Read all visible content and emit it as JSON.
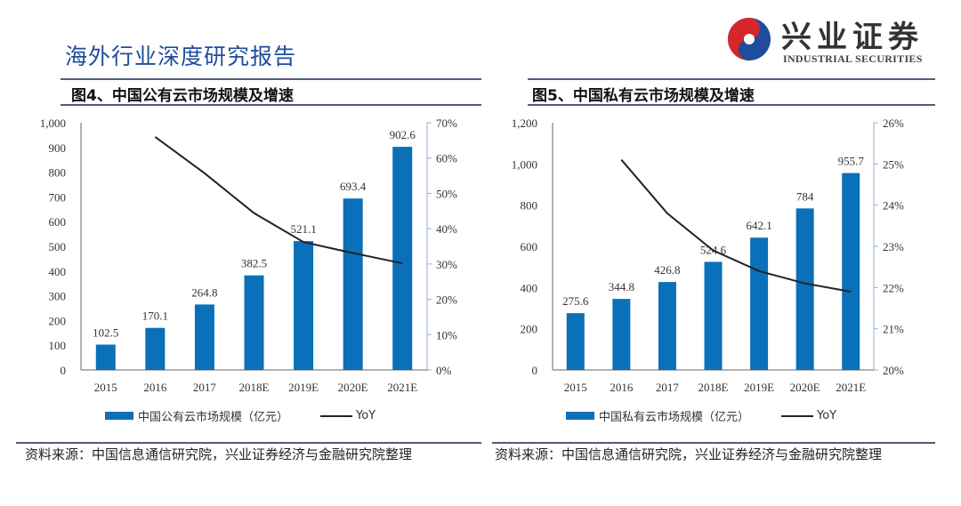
{
  "header": {
    "report_title": "海外行业深度研究报告",
    "logo_cn": "兴业证券",
    "logo_en": "INDUSTRIAL SECURITIES"
  },
  "colors": {
    "bar": "#0a70b9",
    "line": "#222222",
    "title": "#1f4c9c",
    "logo_red": "#d7262b",
    "logo_blue": "#1f4c9c"
  },
  "figures": [
    {
      "title": "图4、中国公有云市场规模及增速",
      "legend_bar": "中国公有云市场规模（亿元）",
      "legend_line": "YoY",
      "source": "资料来源：中国信息通信研究院，兴业证券经济与金融研究院整理"
    },
    {
      "title": "图5、中国私有云市场规模及增速",
      "legend_bar": "中国私有云市场规模（亿元）",
      "legend_line": "YoY",
      "source": "资料来源：中国信息通信研究院，兴业证券经济与金融研究院整理"
    }
  ],
  "chart_data": [
    {
      "type": "bar+line",
      "categories": [
        "2015",
        "2016",
        "2017",
        "2018E",
        "2019E",
        "2020E",
        "2021E"
      ],
      "series": [
        {
          "name": "中国公有云市场规模（亿元）",
          "type": "bar",
          "axis": "left",
          "values": [
            102.5,
            170.1,
            264.8,
            382.5,
            521.1,
            693.4,
            902.6
          ],
          "labels": [
            "102.5",
            "170.1",
            "264.8",
            "382.5",
            "521.1",
            "693.4",
            "902.6"
          ]
        },
        {
          "name": "YoY",
          "type": "line",
          "axis": "right",
          "values": [
            null,
            66.0,
            55.7,
            44.4,
            36.2,
            33.1,
            30.2
          ]
        }
      ],
      "ylim_left": [
        0,
        1000
      ],
      "yticks_left": [
        "0",
        "100",
        "200",
        "300",
        "400",
        "500",
        "600",
        "700",
        "800",
        "900",
        "1,000"
      ],
      "ylim_right": [
        0,
        70
      ],
      "yticks_right": [
        "0%",
        "10%",
        "20%",
        "30%",
        "40%",
        "50%",
        "60%",
        "70%"
      ],
      "legend": "bottom",
      "grid": false
    },
    {
      "type": "bar+line",
      "categories": [
        "2015",
        "2016",
        "2017",
        "2018E",
        "2019E",
        "2020E",
        "2021E"
      ],
      "series": [
        {
          "name": "中国私有云市场规模（亿元）",
          "type": "bar",
          "axis": "left",
          "values": [
            275.6,
            344.8,
            426.8,
            524.6,
            642.1,
            784,
            955.7
          ],
          "labels": [
            "275.6",
            "344.8",
            "426.8",
            "524.6",
            "642.1",
            "784",
            "955.7"
          ]
        },
        {
          "name": "YoY",
          "type": "line",
          "axis": "right",
          "values": [
            null,
            25.1,
            23.8,
            22.9,
            22.4,
            22.1,
            21.9
          ]
        }
      ],
      "ylim_left": [
        0,
        1200
      ],
      "yticks_left": [
        "0",
        "200",
        "400",
        "600",
        "800",
        "1,000",
        "1,200"
      ],
      "ylim_right": [
        20,
        26
      ],
      "yticks_right": [
        "20%",
        "21%",
        "22%",
        "23%",
        "24%",
        "25%",
        "26%"
      ],
      "legend": "bottom",
      "grid": false
    }
  ]
}
